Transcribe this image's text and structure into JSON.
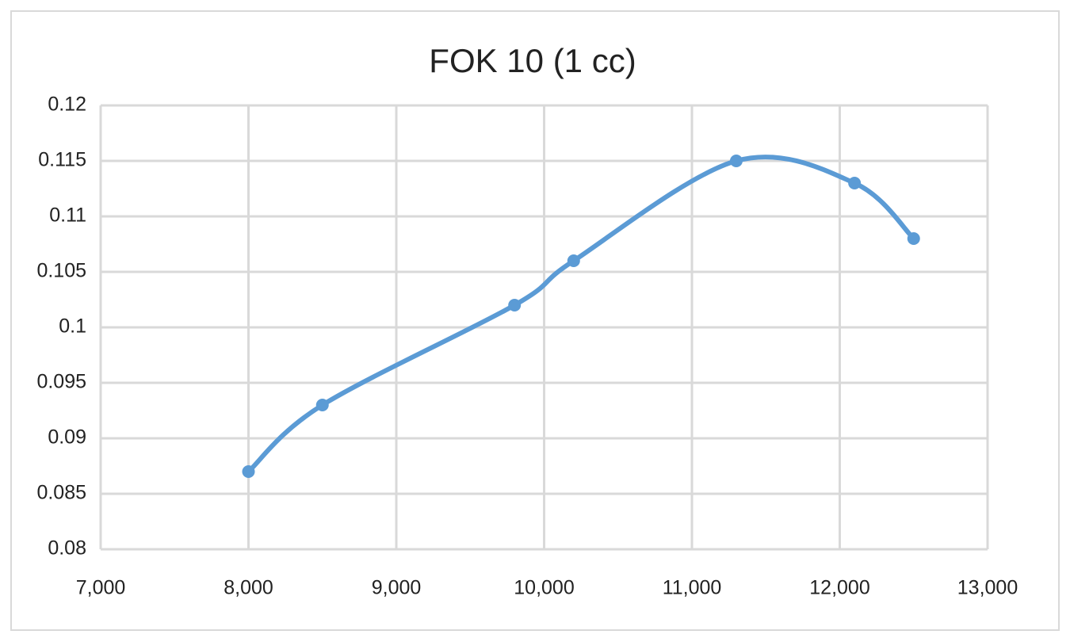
{
  "chart_data": {
    "type": "line",
    "title": "FOK 10 (1 cc)",
    "x": [
      8000,
      8500,
      9800,
      10200,
      11300,
      12100,
      12500
    ],
    "series": [
      {
        "color": "#5b9bd5",
        "values": [
          0.087,
          0.093,
          0.102,
          0.106,
          0.115,
          0.113,
          0.108
        ]
      }
    ],
    "xlim": [
      7000,
      13000
    ],
    "xticks": [
      {
        "value": 7000,
        "label": "7,000"
      },
      {
        "value": 8000,
        "label": "8,000"
      },
      {
        "value": 9000,
        "label": "9,000"
      },
      {
        "value": 10000,
        "label": "10,000"
      },
      {
        "value": 11000,
        "label": "11,000"
      },
      {
        "value": 12000,
        "label": "12,000"
      },
      {
        "value": 13000,
        "label": "13,000"
      }
    ],
    "ylim": [
      0.08,
      0.12
    ],
    "yticks": [
      0.08,
      0.085,
      0.09,
      0.095,
      0.1,
      0.105,
      0.11,
      0.115,
      0.12
    ],
    "grid": true,
    "smooth": true,
    "markers": true
  }
}
